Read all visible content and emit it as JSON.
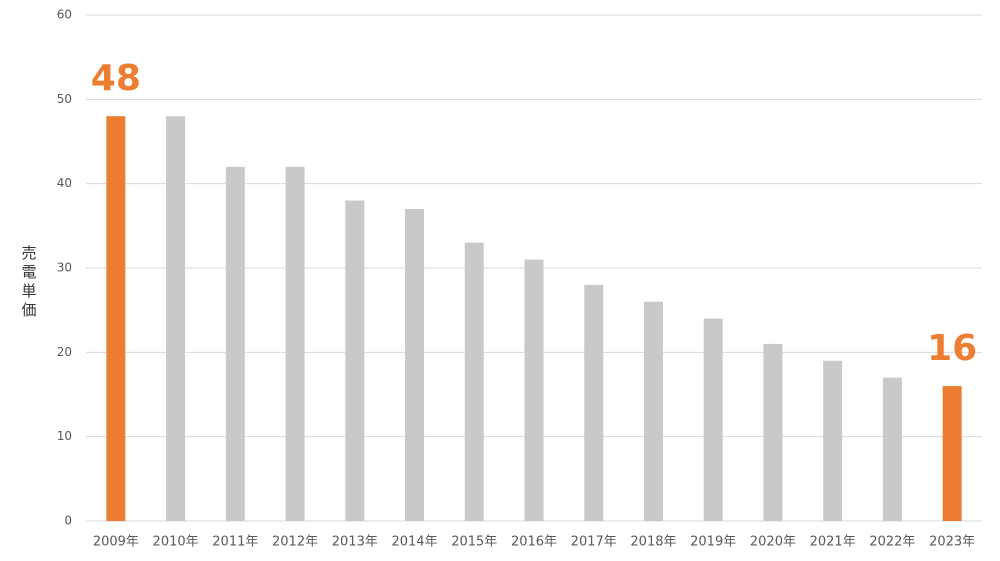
{
  "chart_data": {
    "type": "bar",
    "y_label": "売電単価",
    "categories": [
      "2009年",
      "2010年",
      "2011年",
      "2012年",
      "2013年",
      "2014年",
      "2015年",
      "2016年",
      "2017年",
      "2018年",
      "2019年",
      "2020年",
      "2021年",
      "2022年",
      "2023年"
    ],
    "values": [
      48,
      48,
      42,
      42,
      38,
      37,
      33,
      31,
      28,
      26,
      24,
      21,
      19,
      17,
      16
    ],
    "colors": [
      "#ed7d31",
      "#c9c9c9",
      "#c9c9c9",
      "#c9c9c9",
      "#c9c9c9",
      "#c9c9c9",
      "#c9c9c9",
      "#c9c9c9",
      "#c9c9c9",
      "#c9c9c9",
      "#c9c9c9",
      "#c9c9c9",
      "#c9c9c9",
      "#c9c9c9",
      "#ed7d31"
    ],
    "data_labels": [
      true,
      false,
      false,
      false,
      false,
      false,
      false,
      false,
      false,
      false,
      false,
      false,
      false,
      false,
      true
    ],
    "data_label_color": "#ed7d31",
    "ylim": [
      0,
      60
    ],
    "yticks": [
      0,
      10,
      20,
      30,
      40,
      50,
      60
    ],
    "grid": true
  }
}
